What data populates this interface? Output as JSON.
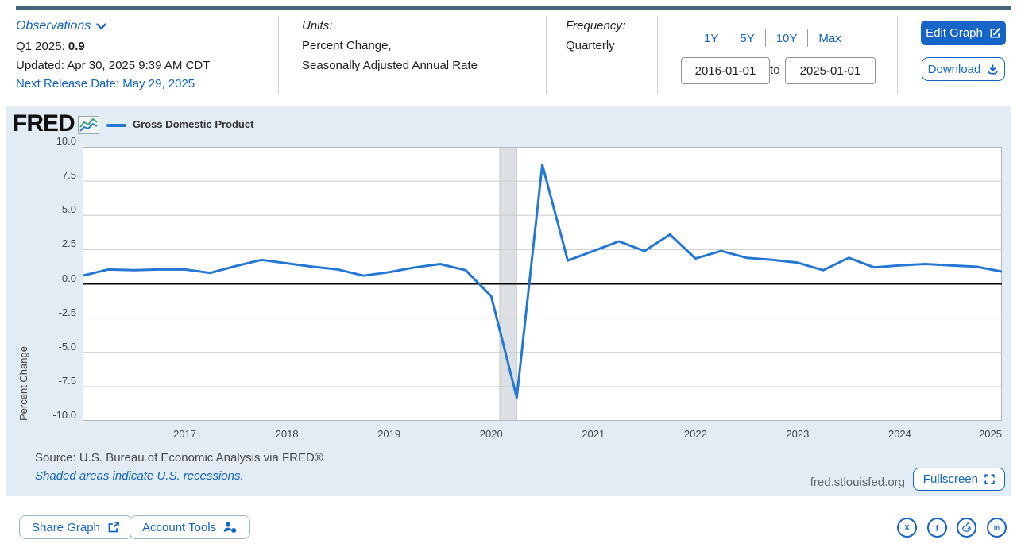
{
  "header": {
    "observations_label": "Observations",
    "latest_label": "Q1 2025:",
    "latest_value": "0.9",
    "updated": "Updated: Apr 30, 2025 9:39 AM CDT",
    "next_release": "Next Release Date: May 29, 2025",
    "units_label": "Units:",
    "units_line1": "Percent Change,",
    "units_line2": "Seasonally Adjusted Annual Rate",
    "frequency_label": "Frequency:",
    "frequency_value": "Quarterly",
    "ranges": [
      "1Y",
      "5Y",
      "10Y",
      "Max"
    ],
    "date_from": "2016-01-01",
    "to_label": "to",
    "date_to": "2025-01-01",
    "edit_graph_label": "Edit Graph",
    "download_label": "Download"
  },
  "chart": {
    "brand": "FRED",
    "legend_label": "Gross Domestic Product",
    "ylabel": "Percent Change",
    "source_line": "Source: U.S. Bureau of Economic Analysis via FRED®",
    "recession_note": "Shaded areas indicate U.S. recessions.",
    "watermark": "fred.stlouisfed.org",
    "fullscreen_label": "Fullscreen"
  },
  "chart_data": {
    "type": "line",
    "title": "Gross Domestic Product",
    "ylabel": "Percent Change",
    "xlim": [
      2016.0,
      2025.0
    ],
    "ylim": [
      -10.0,
      10.0
    ],
    "grid": "horizontal",
    "zero_line": true,
    "legend_position": "top-left",
    "yticks": [
      {
        "v": 10.0,
        "label": "10.0"
      },
      {
        "v": 7.5,
        "label": "7.5"
      },
      {
        "v": 5.0,
        "label": "5.0"
      },
      {
        "v": 2.5,
        "label": "2.5"
      },
      {
        "v": 0.0,
        "label": "0.0"
      },
      {
        "v": -2.5,
        "label": "-2.5"
      },
      {
        "v": -5.0,
        "label": "-5.0"
      },
      {
        "v": -7.5,
        "label": "-7.5"
      },
      {
        "v": -10.0,
        "label": "-10.0"
      }
    ],
    "xticks": [
      {
        "v": 2017,
        "label": "2017"
      },
      {
        "v": 2018,
        "label": "2018"
      },
      {
        "v": 2019,
        "label": "2019"
      },
      {
        "v": 2020,
        "label": "2020"
      },
      {
        "v": 2021,
        "label": "2021"
      },
      {
        "v": 2022,
        "label": "2022"
      },
      {
        "v": 2023,
        "label": "2023"
      },
      {
        "v": 2024,
        "label": "2024"
      },
      {
        "v": 2025,
        "label": "2025"
      }
    ],
    "recession_bands": [
      {
        "start": 2020.083,
        "end": 2020.25
      }
    ],
    "series": [
      {
        "name": "Gross Domestic Product",
        "color": "#2478d4",
        "x_start": 2016.0,
        "x_step": 0.25,
        "values": [
          0.6,
          1.05,
          1.0,
          1.05,
          1.05,
          0.8,
          1.3,
          1.75,
          1.5,
          1.25,
          1.05,
          0.6,
          0.85,
          1.2,
          1.45,
          1.0,
          -0.9,
          -8.3,
          8.7,
          1.7,
          2.4,
          3.1,
          2.4,
          3.6,
          1.85,
          2.4,
          1.9,
          1.75,
          1.55,
          1.0,
          1.9,
          1.2,
          1.35,
          1.45,
          1.35,
          1.25,
          0.9
        ]
      }
    ]
  },
  "footer": {
    "share_label": "Share Graph",
    "account_label": "Account Tools",
    "social": [
      {
        "name": "x",
        "glyph": "X"
      },
      {
        "name": "facebook",
        "glyph": "f"
      },
      {
        "name": "reddit",
        "glyph": ""
      },
      {
        "name": "linkedin",
        "glyph": "in"
      }
    ]
  },
  "colors": {
    "accent_blue": "#1565c8",
    "link_blue": "#1164c0",
    "line_blue": "#2478d4",
    "panel_bg": "#e2ecf5",
    "top_accent": "#47637a",
    "recession_band": "#dcdfe3",
    "grid_line": "#cccccc",
    "zero_line": "#000000"
  }
}
